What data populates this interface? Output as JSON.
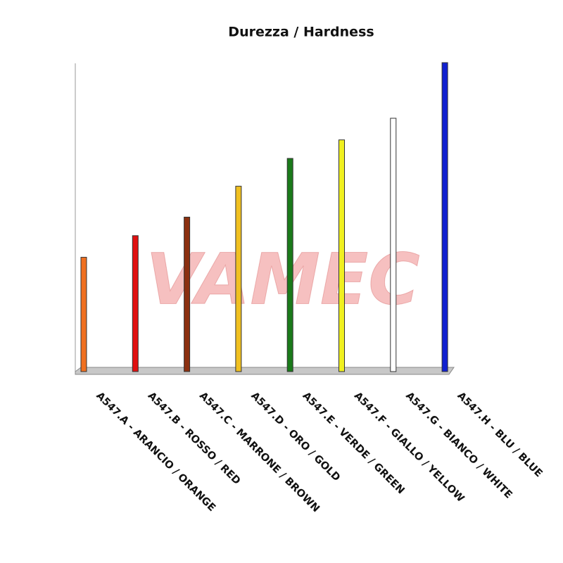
{
  "chart_data": {
    "type": "bar",
    "title": "Durezza / Hardness",
    "watermark": "VAMEC",
    "categories": [
      "A547.A - ARANCIO / ORANGE",
      "A547.B - ROSSO / RED",
      "A547.C - MARRONE / BROWN",
      "A547.D - ORO / GOLD",
      "A547.E - VERDE / GREEN",
      "A547.F - GIALLO / YELLOW",
      "A547.G - BIANCO / WHITE",
      "A547.H - BLU / BLUE"
    ],
    "values": [
      37,
      44,
      50,
      60,
      69,
      75,
      82,
      100
    ],
    "colors": [
      "#f07020",
      "#e01010",
      "#8b3010",
      "#f0c020",
      "#1a7a1a",
      "#f0f020",
      "#ffffff",
      "#1020d0"
    ],
    "ylim": [
      0,
      100
    ]
  }
}
